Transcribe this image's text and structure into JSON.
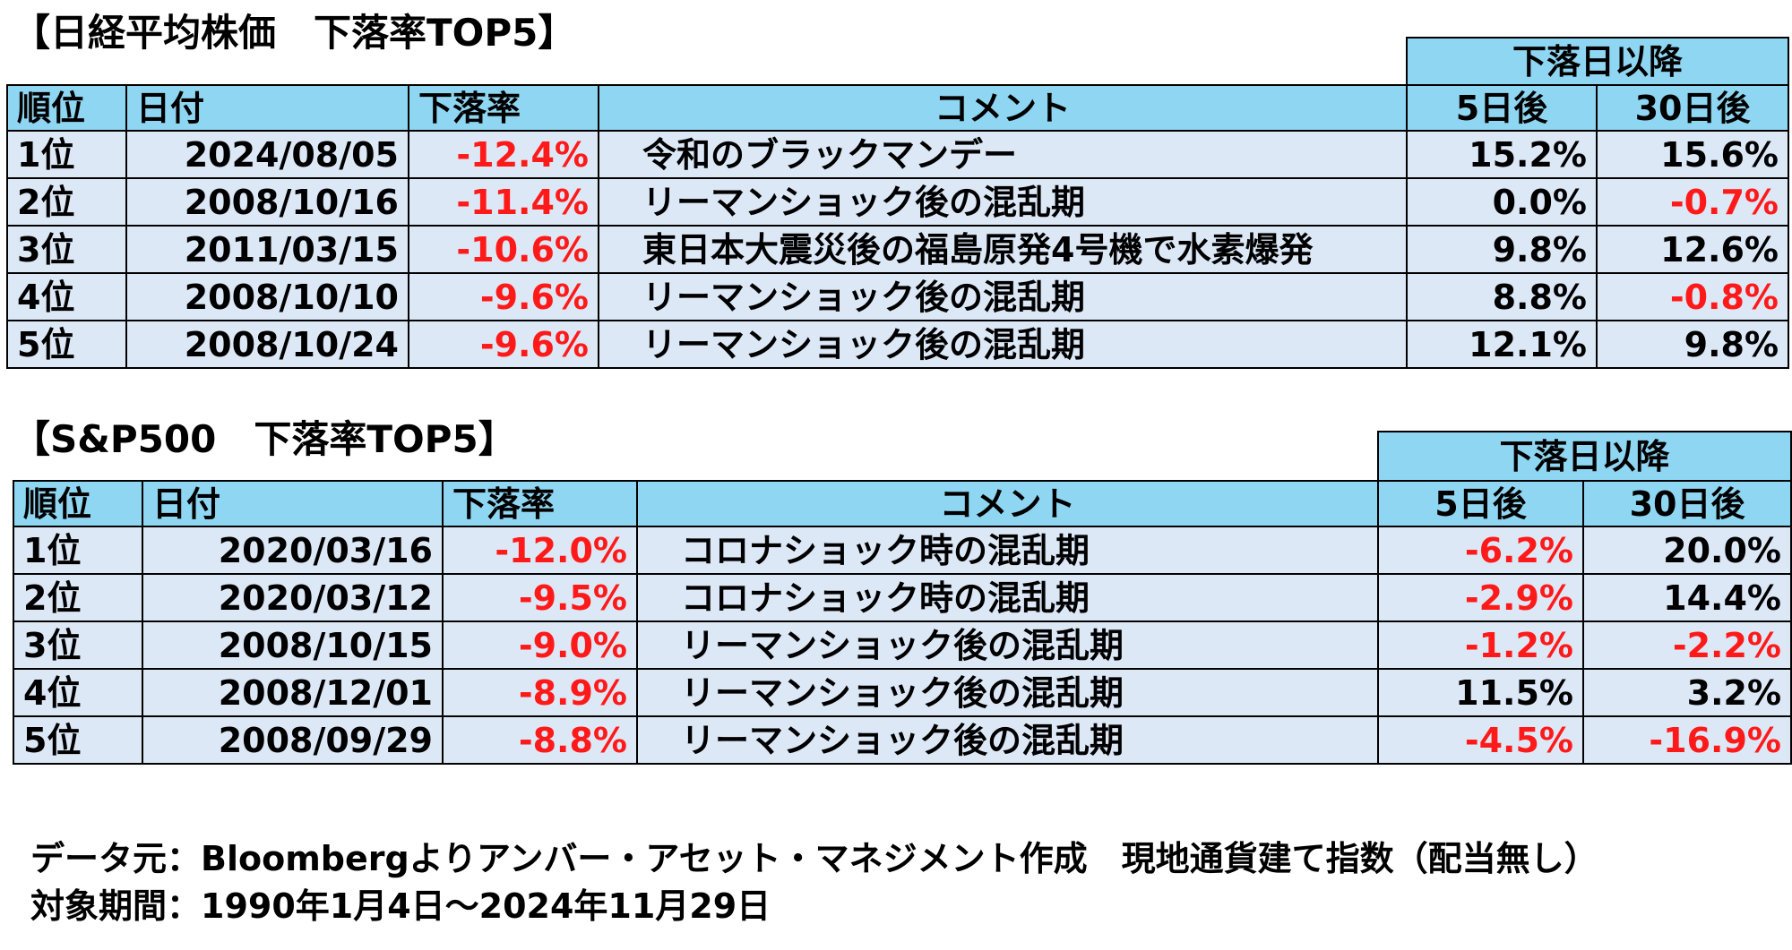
{
  "nikkei": {
    "title": "【日経平均株価　下落率TOP5】",
    "super_header": "下落日以降",
    "headers": {
      "rank": "順位",
      "date": "日付",
      "decline": "下落率",
      "comment": "コメント",
      "d5": "5日後",
      "d30": "30日後"
    },
    "rows": [
      {
        "rank": "1位",
        "date": "2024/08/05",
        "decline": "-12.4%",
        "comment": "令和のブラックマンデー",
        "d5": "15.2%",
        "d30": "15.6%"
      },
      {
        "rank": "2位",
        "date": "2008/10/16",
        "decline": "-11.4%",
        "comment": "リーマンショック後の混乱期",
        "d5": "0.0%",
        "d30": "-0.7%"
      },
      {
        "rank": "3位",
        "date": "2011/03/15",
        "decline": "-10.6%",
        "comment": "東日本大震災後の福島原発4号機で水素爆発",
        "d5": "9.8%",
        "d30": "12.6%"
      },
      {
        "rank": "4位",
        "date": "2008/10/10",
        "decline": "-9.6%",
        "comment": "リーマンショック後の混乱期",
        "d5": "8.8%",
        "d30": "-0.8%"
      },
      {
        "rank": "5位",
        "date": "2008/10/24",
        "decline": "-9.6%",
        "comment": "リーマンショック後の混乱期",
        "d5": "12.1%",
        "d30": "9.8%"
      }
    ]
  },
  "sp500": {
    "title": "【S&P500　下落率TOP5】",
    "super_header": "下落日以降",
    "headers": {
      "rank": "順位",
      "date": "日付",
      "decline": "下落率",
      "comment": "コメント",
      "d5": "5日後",
      "d30": "30日後"
    },
    "rows": [
      {
        "rank": "1位",
        "date": "2020/03/16",
        "decline": "-12.0%",
        "comment": "コロナショック時の混乱期",
        "d5": "-6.2%",
        "d30": "20.0%"
      },
      {
        "rank": "2位",
        "date": "2020/03/12",
        "decline": "-9.5%",
        "comment": "コロナショック時の混乱期",
        "d5": "-2.9%",
        "d30": "14.4%"
      },
      {
        "rank": "3位",
        "date": "2008/10/15",
        "decline": "-9.0%",
        "comment": "リーマンショック後の混乱期",
        "d5": "-1.2%",
        "d30": "-2.2%"
      },
      {
        "rank": "4位",
        "date": "2008/12/01",
        "decline": "-8.9%",
        "comment": "リーマンショック後の混乱期",
        "d5": "11.5%",
        "d30": "3.2%"
      },
      {
        "rank": "5位",
        "date": "2008/09/29",
        "decline": "-8.8%",
        "comment": "リーマンショック後の混乱期",
        "d5": "-4.5%",
        "d30": "-16.9%"
      }
    ]
  },
  "footnote": {
    "source": "データ元：Bloombergよりアンバー・アセット・マネジメント作成　現地通貨建て指数（配当無し）",
    "period": "対象期間：1990年1月4日～2024年11月29日"
  },
  "colors": {
    "header_bg": "#8fd6f2",
    "row_bg": "#dde8f7",
    "negative": "#ff1a1a"
  }
}
